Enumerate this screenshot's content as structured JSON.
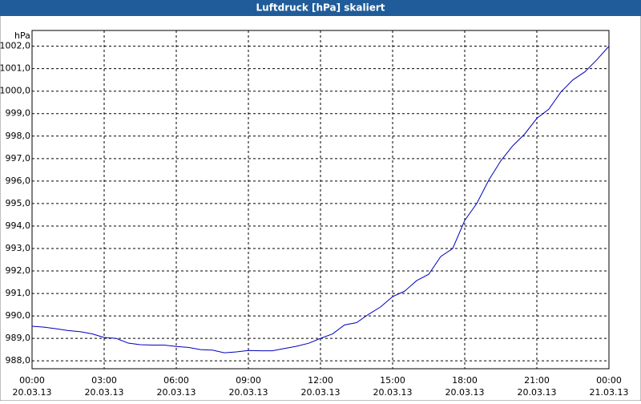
{
  "title_bar": "Luftdruck [hPa] skaliert",
  "chart_data": {
    "type": "line",
    "y_label": "hPa",
    "x": [
      0,
      0.5,
      1,
      1.5,
      2,
      2.5,
      3,
      3.5,
      4,
      4.5,
      5,
      5.5,
      6,
      6.5,
      7,
      7.5,
      8,
      8.5,
      9,
      9.5,
      10,
      10.5,
      11,
      11.5,
      12,
      12.5,
      13,
      13.5,
      14,
      14.5,
      15,
      15.5,
      16,
      16.5,
      17,
      17.5,
      18,
      18.5,
      19,
      19.5,
      20,
      20.5,
      21,
      21.5,
      22,
      22.5,
      23,
      23.5,
      24
    ],
    "series": [
      {
        "name": "Luftdruck",
        "color": "#0000c0",
        "values": [
          989.54,
          989.5,
          989.43,
          989.35,
          989.3,
          989.2,
          989.04,
          989.0,
          988.79,
          988.72,
          988.7,
          988.7,
          988.64,
          988.6,
          988.5,
          988.48,
          988.36,
          988.4,
          988.46,
          988.45,
          988.45,
          988.55,
          988.65,
          988.78,
          989.0,
          989.2,
          989.6,
          989.7,
          990.07,
          990.4,
          990.86,
          991.1,
          991.57,
          991.85,
          992.64,
          993.0,
          994.25,
          995.0,
          996.04,
          996.9,
          997.57,
          998.1,
          998.79,
          999.2,
          999.96,
          1000.5,
          1000.86,
          1001.4,
          1002.0
        ]
      }
    ],
    "xlim": [
      0,
      24
    ],
    "xticks": [
      {
        "value": 0,
        "label": "00:00",
        "date": "20.03.13"
      },
      {
        "value": 3,
        "label": "03:00",
        "date": "20.03.13"
      },
      {
        "value": 6,
        "label": "06:00",
        "date": "20.03.13"
      },
      {
        "value": 9,
        "label": "09:00",
        "date": "20.03.13"
      },
      {
        "value": 12,
        "label": "12:00",
        "date": "20.03.13"
      },
      {
        "value": 15,
        "label": "15:00",
        "date": "20.03.13"
      },
      {
        "value": 18,
        "label": "18:00",
        "date": "20.03.13"
      },
      {
        "value": 21,
        "label": "21:00",
        "date": "20.03.13"
      },
      {
        "value": 24,
        "label": "00:00",
        "date": "21.03.13"
      }
    ],
    "ylim": [
      987.65,
      1002.7
    ],
    "yticks": [
      {
        "value": 988,
        "label": "988,0"
      },
      {
        "value": 989,
        "label": "989,0"
      },
      {
        "value": 990,
        "label": "990,0"
      },
      {
        "value": 991,
        "label": "991,0"
      },
      {
        "value": 992,
        "label": "992,0"
      },
      {
        "value": 993,
        "label": "993,0"
      },
      {
        "value": 994,
        "label": "994,0"
      },
      {
        "value": 995,
        "label": "995,0"
      },
      {
        "value": 996,
        "label": "996,0"
      },
      {
        "value": 997,
        "label": "997,0"
      },
      {
        "value": 998,
        "label": "998,0"
      },
      {
        "value": 999,
        "label": "999,0"
      },
      {
        "value": 1000,
        "label": "1000,0"
      },
      {
        "value": 1001,
        "label": "1001,0"
      },
      {
        "value": 1002,
        "label": "1002,0"
      }
    ],
    "grid": true
  }
}
